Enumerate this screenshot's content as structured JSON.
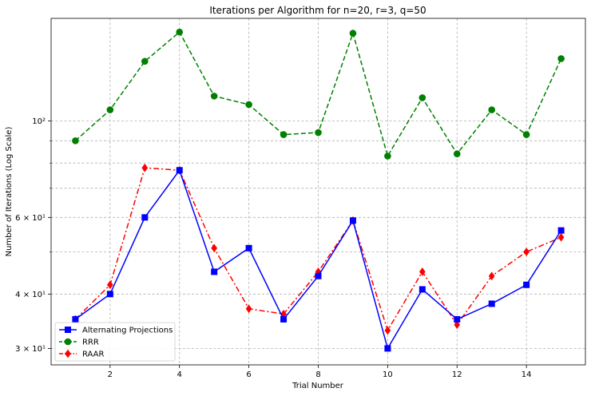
{
  "chart_data": {
    "type": "line",
    "title": "Iterations per Algorithm for n=20, r=3, q=50",
    "xlabel": "Trial Number",
    "ylabel": "Number of Iterations (Log Scale)",
    "yscale": "log",
    "xlim": [
      0.3,
      15.7
    ],
    "ylim": [
      27.5,
      172
    ],
    "grid": true,
    "legend_position": "lower-left",
    "x": [
      1,
      2,
      3,
      4,
      5,
      6,
      7,
      8,
      9,
      10,
      11,
      12,
      13,
      14,
      15
    ],
    "xticks": [
      2,
      4,
      6,
      8,
      10,
      12,
      14
    ],
    "yticks_major": [
      {
        "value": 30,
        "label": "3 × 10¹"
      },
      {
        "value": 40,
        "label": "4 × 10¹"
      },
      {
        "value": 60,
        "label": "6 × 10¹"
      },
      {
        "value": 100,
        "label": "10²"
      }
    ],
    "yticks_minor": [
      50,
      70,
      80,
      90
    ],
    "series": [
      {
        "name": "Alternating Projections",
        "color": "#0000ff",
        "linestyle": "solid",
        "marker": "square",
        "values": [
          35,
          40,
          60,
          77,
          45,
          51,
          35,
          44,
          59,
          30,
          41,
          35,
          38,
          42,
          56
        ]
      },
      {
        "name": "RRR",
        "color": "#008000",
        "linestyle": "dashed",
        "marker": "circle",
        "values": [
          90,
          106,
          137,
          160,
          114,
          109,
          93,
          94,
          159,
          83,
          113,
          84,
          106,
          93,
          139
        ]
      },
      {
        "name": "RAAR",
        "color": "#ff0000",
        "linestyle": "dashdot",
        "marker": "diamond",
        "values": [
          35,
          42,
          78,
          77,
          51,
          37,
          36,
          45,
          59,
          33,
          45,
          34,
          44,
          50,
          54
        ]
      }
    ]
  }
}
